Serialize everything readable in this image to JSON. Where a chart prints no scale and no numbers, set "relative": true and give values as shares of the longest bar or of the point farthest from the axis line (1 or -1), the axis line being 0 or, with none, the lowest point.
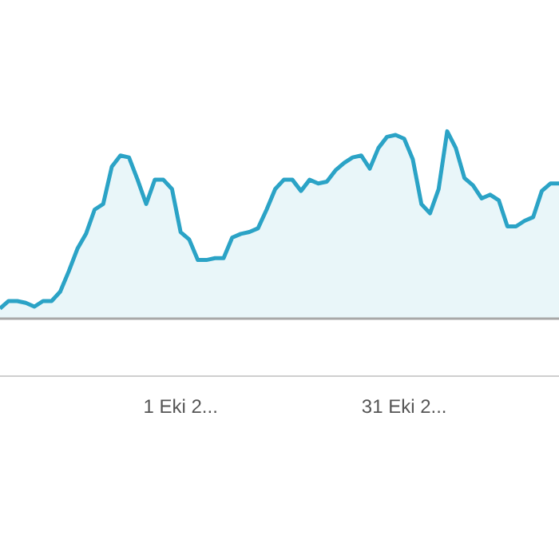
{
  "chart_data": {
    "type": "area",
    "relative": true,
    "legend": false,
    "marker": "none",
    "line_style": "solid",
    "categories": [
      null,
      null,
      null,
      null,
      null,
      null,
      null,
      null,
      null,
      null,
      null,
      null,
      null,
      null,
      null,
      null,
      null,
      null,
      null,
      null,
      null,
      "1 Eki 2...",
      null,
      null,
      null,
      null,
      null,
      null,
      null,
      null,
      null,
      null,
      null,
      null,
      null,
      null,
      null,
      null,
      null,
      null,
      null,
      null,
      null,
      null,
      null,
      null,
      null,
      "31 Eki 2...",
      null,
      null,
      null,
      null,
      null,
      null,
      null,
      null,
      null,
      null,
      null,
      null,
      null,
      null,
      null,
      null,
      null,
      null
    ],
    "series": [
      {
        "color": "#2ba3c6",
        "values": [
          0.05,
          0.09,
          0.09,
          0.08,
          0.06,
          0.09,
          0.09,
          0.14,
          0.25,
          0.37,
          0.45,
          0.58,
          0.61,
          0.81,
          0.87,
          0.86,
          0.74,
          0.61,
          0.74,
          0.74,
          0.69,
          0.46,
          0.42,
          0.31,
          0.31,
          0.32,
          0.32,
          0.43,
          0.45,
          0.46,
          0.48,
          0.58,
          0.69,
          0.74,
          0.74,
          0.68,
          0.74,
          0.72,
          0.73,
          0.79,
          0.83,
          0.86,
          0.87,
          0.8,
          0.91,
          0.97,
          0.98,
          0.96,
          0.85,
          0.61,
          0.56,
          0.69,
          1,
          0.91,
          0.75,
          0.71,
          0.64,
          0.66,
          0.63,
          0.49,
          0.49,
          0.52,
          0.54,
          0.68,
          0.72,
          0.72
        ]
      }
    ]
  }
}
